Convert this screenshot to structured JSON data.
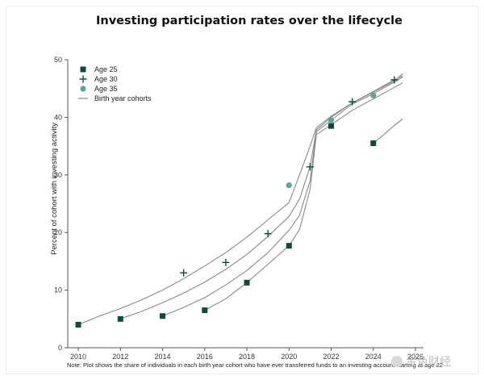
{
  "chart_data": {
    "type": "scatter",
    "title": "Investing participation rates over the lifecycle",
    "ylabel": "Percent of cohort with investing activity",
    "xlabel": "",
    "xlim": [
      2009.5,
      2026
    ],
    "ylim": [
      0,
      50
    ],
    "x_ticks": [
      2010,
      2012,
      2014,
      2016,
      2018,
      2020,
      2022,
      2024,
      2026
    ],
    "y_ticks": [
      0,
      10,
      20,
      30,
      40,
      50
    ],
    "legend": {
      "position": "top-left",
      "entries": [
        {
          "label": "Age 25",
          "marker": "square"
        },
        {
          "label": "Age 30",
          "marker": "plus"
        },
        {
          "label": "Age 35",
          "marker": "circle"
        },
        {
          "label": "Birth year cohorts",
          "marker": "line"
        }
      ]
    },
    "series": [
      {
        "name": "Age 25",
        "marker": "square",
        "color": "#0e4a3e",
        "points": [
          [
            2010,
            4
          ],
          [
            2012,
            5
          ],
          [
            2014,
            5.5
          ],
          [
            2016,
            6.5
          ],
          [
            2018,
            11.3
          ],
          [
            2020,
            17.7
          ],
          [
            2022,
            38.5
          ],
          [
            2024,
            35.5
          ]
        ]
      },
      {
        "name": "Age 30",
        "marker": "plus",
        "color": "#0e4a3e",
        "points": [
          [
            2015,
            13
          ],
          [
            2017,
            14.8
          ],
          [
            2019,
            19.8
          ],
          [
            2021,
            31.4
          ],
          [
            2023,
            42.7
          ],
          [
            2025,
            46.5
          ]
        ]
      },
      {
        "name": "Age 35",
        "marker": "circle",
        "color": "#5aa595",
        "points": [
          [
            2020,
            28.2
          ],
          [
            2022,
            39.5
          ],
          [
            2024,
            43.8
          ]
        ]
      }
    ],
    "cohort_lines": [
      [
        [
          2010,
          4
        ],
        [
          2011,
          5.5
        ],
        [
          2012,
          6.8
        ],
        [
          2013,
          8.3
        ],
        [
          2014,
          10
        ],
        [
          2015,
          12
        ],
        [
          2016,
          14.2
        ],
        [
          2017,
          16.5
        ],
        [
          2018,
          19.2
        ],
        [
          2019,
          22.2
        ],
        [
          2020,
          25.2
        ],
        [
          2020.5,
          30
        ],
        [
          2021,
          35
        ],
        [
          2021.3,
          38.2
        ],
        [
          2022,
          40.2
        ],
        [
          2023,
          42.5
        ],
        [
          2024,
          44.5
        ],
        [
          2025,
          46.5
        ],
        [
          2025.4,
          47.2
        ]
      ],
      [
        [
          2012,
          5
        ],
        [
          2013,
          6.3
        ],
        [
          2014,
          7.8
        ],
        [
          2015,
          9.5
        ],
        [
          2016,
          11.4
        ],
        [
          2017,
          13.6
        ],
        [
          2018,
          16.2
        ],
        [
          2019,
          19.3
        ],
        [
          2020,
          22.8
        ],
        [
          2020.5,
          25.8
        ],
        [
          2021,
          31.4
        ],
        [
          2021.3,
          37.8
        ],
        [
          2022,
          40
        ],
        [
          2023,
          42.5
        ],
        [
          2024,
          44.4
        ],
        [
          2025,
          46.3
        ],
        [
          2025.4,
          47.6
        ]
      ],
      [
        [
          2014,
          5.5
        ],
        [
          2015,
          7
        ],
        [
          2016,
          8.7
        ],
        [
          2017,
          10.9
        ],
        [
          2018,
          13.4
        ],
        [
          2019,
          16.5
        ],
        [
          2020,
          20.4
        ],
        [
          2020.5,
          23
        ],
        [
          2021,
          29
        ],
        [
          2021.3,
          37.5
        ],
        [
          2022,
          39.5
        ],
        [
          2023,
          42.3
        ],
        [
          2024,
          44.1
        ],
        [
          2025,
          46.1
        ],
        [
          2025.4,
          47
        ]
      ],
      [
        [
          2016,
          6.5
        ],
        [
          2017,
          8.5
        ],
        [
          2018,
          11.3
        ],
        [
          2019,
          14.5
        ],
        [
          2020,
          17.7
        ],
        [
          2020.5,
          20.5
        ],
        [
          2021,
          27.5
        ],
        [
          2021.3,
          37
        ],
        [
          2022,
          38.7
        ],
        [
          2023,
          41.2
        ],
        [
          2024,
          43.2
        ],
        [
          2025,
          45.2
        ],
        [
          2025.4,
          46
        ]
      ],
      [
        [
          2024,
          35.5
        ],
        [
          2024.5,
          37
        ],
        [
          2025,
          38.6
        ],
        [
          2025.4,
          39.7
        ]
      ]
    ],
    "note": "Note: Plot shows the share of individuals in each birth year cohort who have ever transferred funds to an investing account starting at age 22"
  },
  "colors": {
    "dark_green": "#0e4a3e",
    "light_green": "#5aa595",
    "cohort_line": "#8a8a8a",
    "axis": "#555555"
  },
  "watermark": "金色财经"
}
